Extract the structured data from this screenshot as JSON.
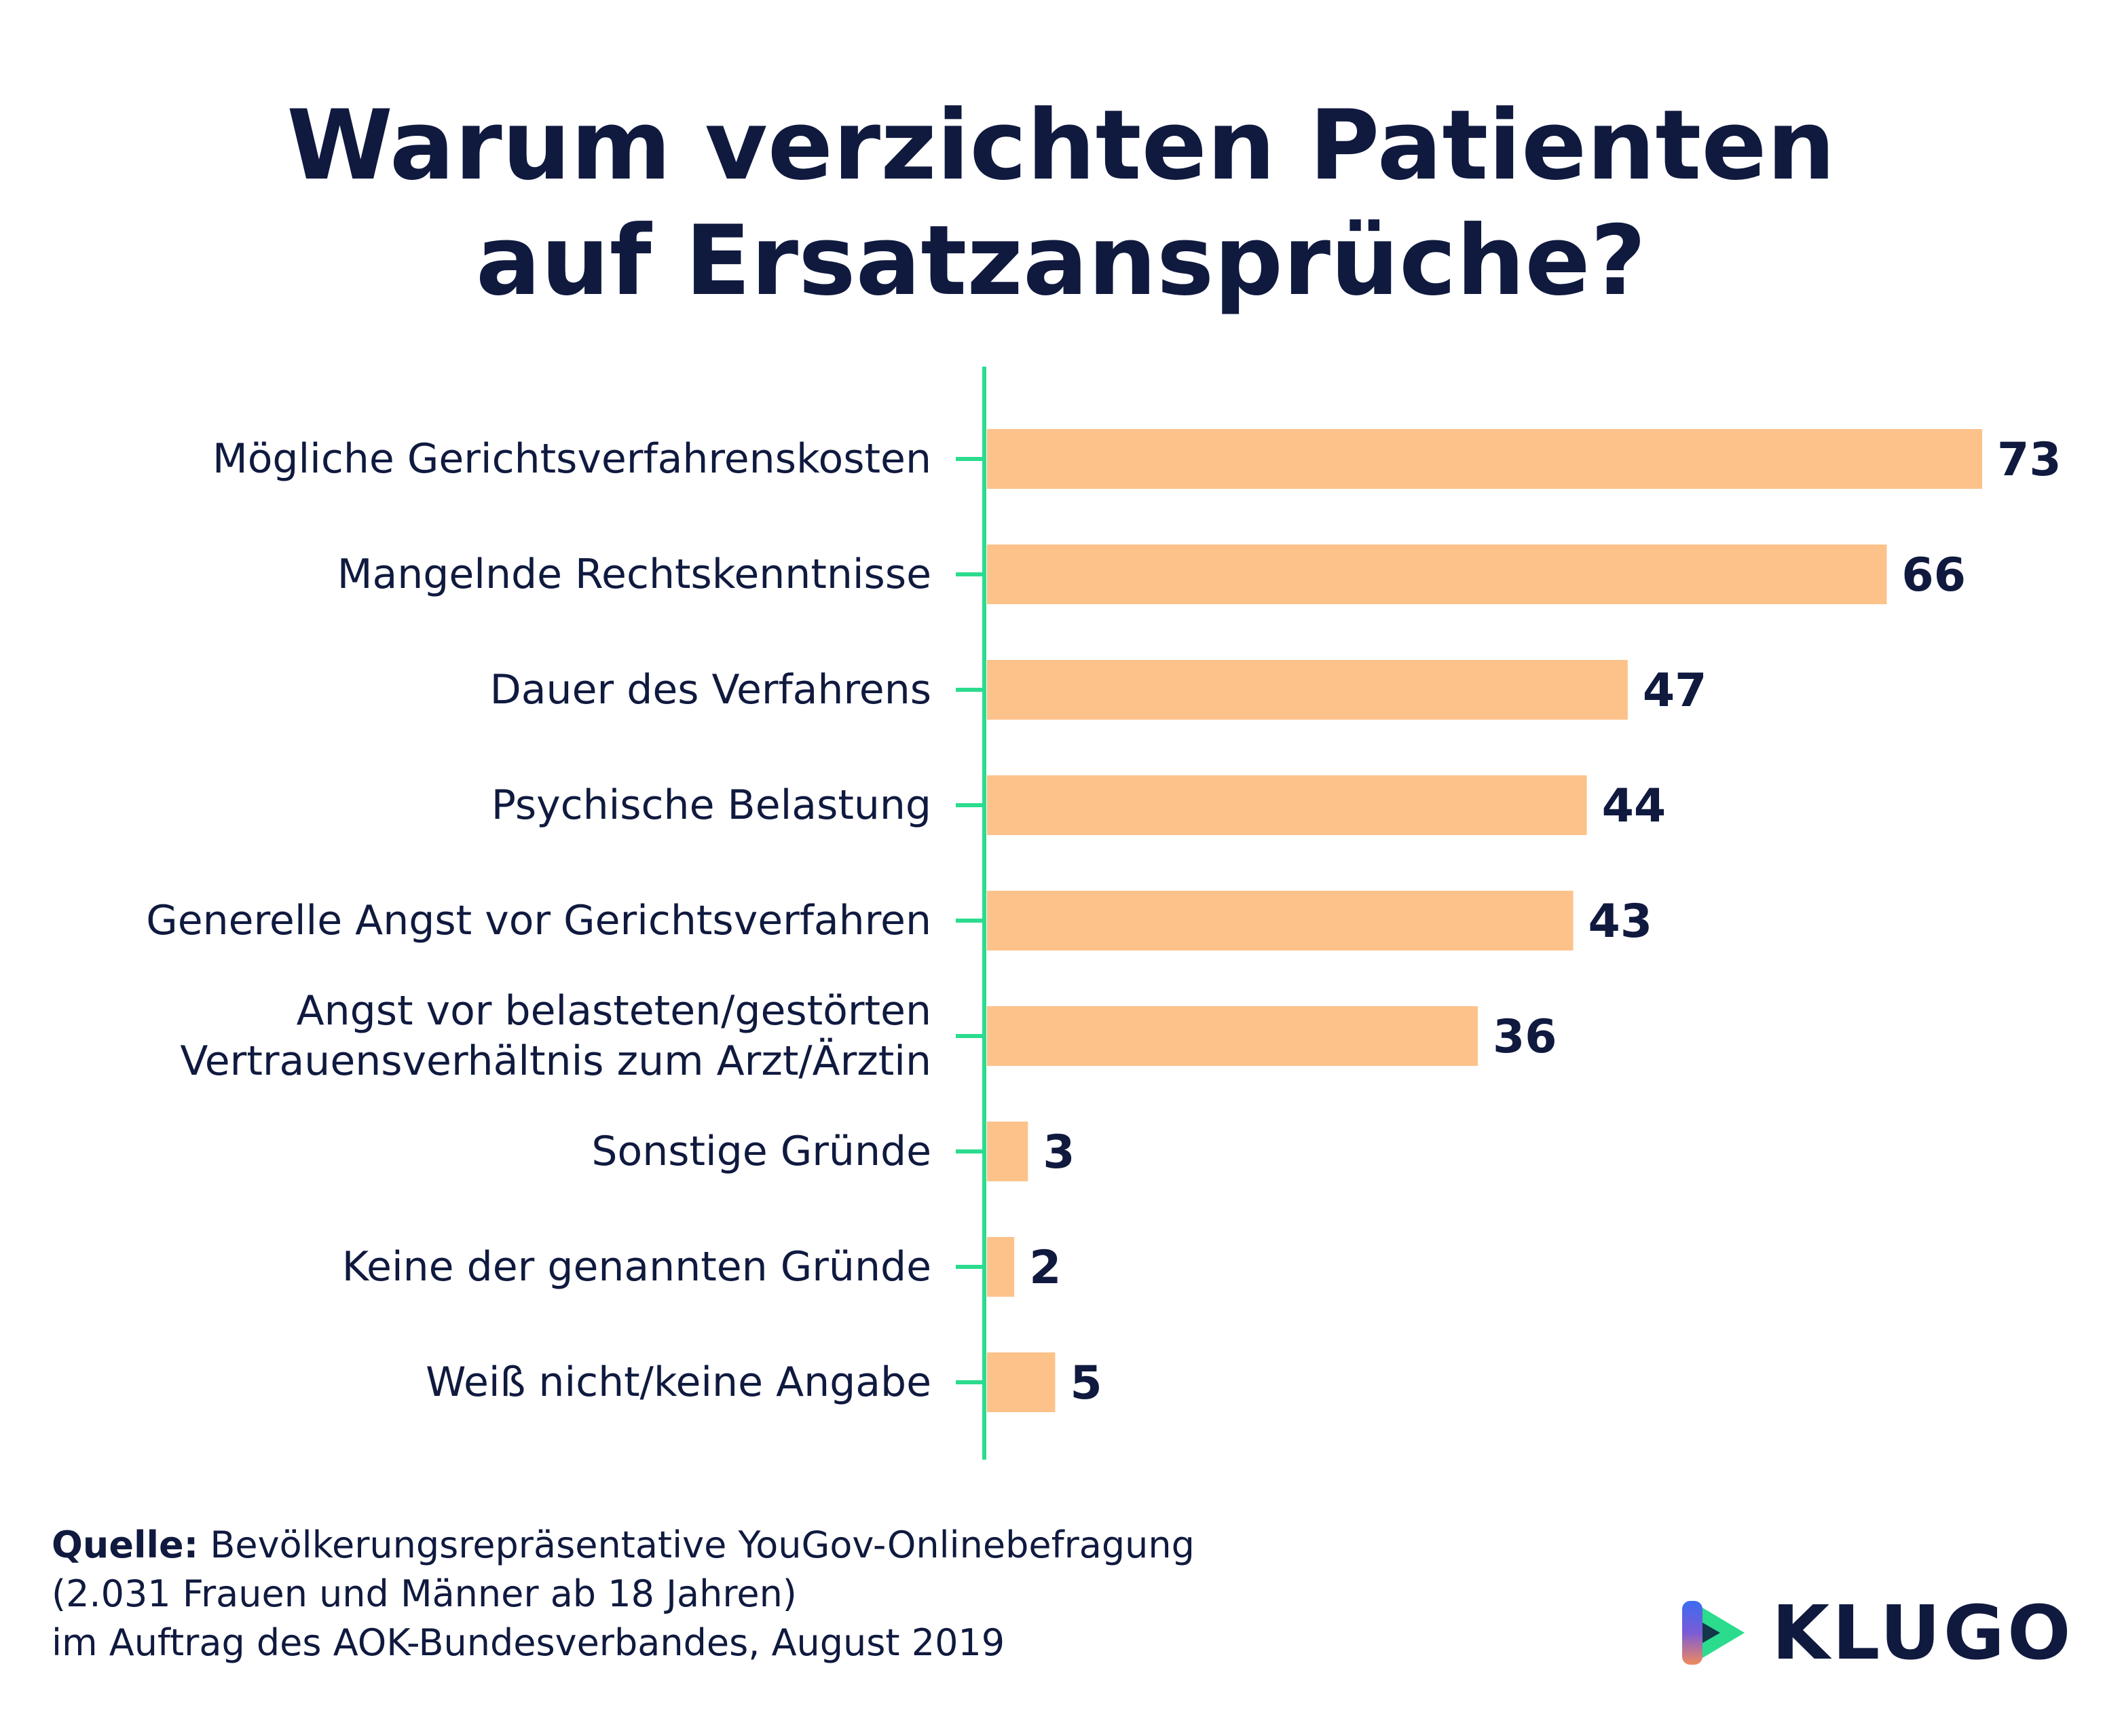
{
  "title_line1": "Warum verzichten Patienten",
  "title_line2": "auf Ersatzansprüche?",
  "colors": {
    "bar": "#fdc28a",
    "axis": "#2bdc8e",
    "text": "#101a3f"
  },
  "chart_data": {
    "type": "bar",
    "orientation": "horizontal",
    "categories": [
      [
        "Mögliche Gerichtsverfahrenskosten"
      ],
      [
        "Mangelnde Rechtskenntnisse"
      ],
      [
        "Dauer des Verfahrens"
      ],
      [
        "Psychische Belastung"
      ],
      [
        "Generelle Angst vor Gerichtsverfahren"
      ],
      [
        "Angst vor belasteten/gestörten",
        "Vertrauensverhältnis zum Arzt/Ärztin"
      ],
      [
        "Sonstige Gründe"
      ],
      [
        "Keine der genannten Gründe"
      ],
      [
        "Weiß nicht/keine Angabe"
      ]
    ],
    "values": [
      73,
      66,
      47,
      44,
      43,
      36,
      3,
      2,
      5
    ],
    "value_labels": [
      "73",
      "66",
      "47",
      "44",
      "43",
      "36",
      "3",
      "2",
      "5"
    ],
    "xlim": [
      0,
      73
    ],
    "grid": false,
    "legend": "none"
  },
  "source": {
    "label": "Quelle:",
    "line1": " Bevölkerungsrepräsentative YouGov-Onlinebefragung",
    "line2": "(2.031 Frauen und Männer ab 18 Jahren)",
    "line3": "im Auftrag des AOK-Bundesverbandes, August 2019"
  },
  "logo": {
    "text": "KLUGO",
    "icon": "klugo-play-icon"
  }
}
